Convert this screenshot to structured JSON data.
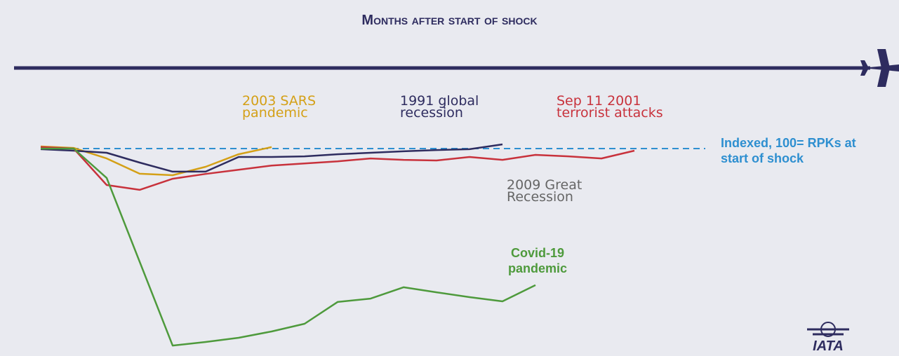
{
  "chart_data": {
    "type": "line",
    "x_label": "Months after start of shock",
    "reference": {
      "value": 100,
      "label": "Indexed, 100= RPKs at start of shock"
    },
    "annotation": "2009 Great\nRecession",
    "logo": "IATA",
    "xlim": [
      0,
      24
    ],
    "ylim": [
      0,
      130
    ],
    "series": [
      {
        "name": "2003 SARS\npandemic",
        "color": "#d4a017",
        "x": [
          0,
          1,
          2,
          3,
          4,
          5,
          6,
          7
        ],
        "values": [
          101,
          100.3,
          95.3,
          88,
          87.3,
          91.3,
          97.3,
          100.7
        ]
      },
      {
        "name": "1991 global\nrecession",
        "color": "#2e2c5f",
        "x": [
          0,
          1,
          2,
          3,
          4,
          5,
          6,
          7,
          8,
          9,
          10,
          11,
          12,
          13,
          14
        ],
        "values": [
          99.7,
          99,
          98,
          93.3,
          89,
          89,
          96,
          96,
          96.3,
          97.3,
          98,
          98.7,
          99.3,
          99.7,
          102
        ]
      },
      {
        "name": "Sep 11 2001\nterrorist attacks",
        "color": "#c8323c",
        "x": [
          0,
          1,
          2,
          3,
          4,
          5,
          6,
          7,
          8,
          9,
          10,
          11,
          12,
          13,
          14,
          15,
          16,
          17,
          18
        ],
        "values": [
          100.7,
          100,
          82.6,
          80.3,
          85.6,
          87.9,
          89.9,
          91.9,
          92.9,
          93.9,
          95.3,
          94.6,
          94.3,
          96,
          94.6,
          97,
          96.3,
          95.3,
          99
        ]
      },
      {
        "name": "Covid-19\npandemic",
        "color": "#4e9a3c",
        "x": [
          0,
          1,
          2,
          4,
          5,
          6,
          7,
          8,
          9,
          10,
          11,
          12,
          13,
          14,
          15
        ],
        "values": [
          100,
          100,
          86,
          6,
          7.7,
          9.7,
          12.7,
          16.4,
          26.8,
          28.4,
          33.8,
          31.4,
          29.1,
          27.1,
          34.8
        ]
      }
    ]
  }
}
